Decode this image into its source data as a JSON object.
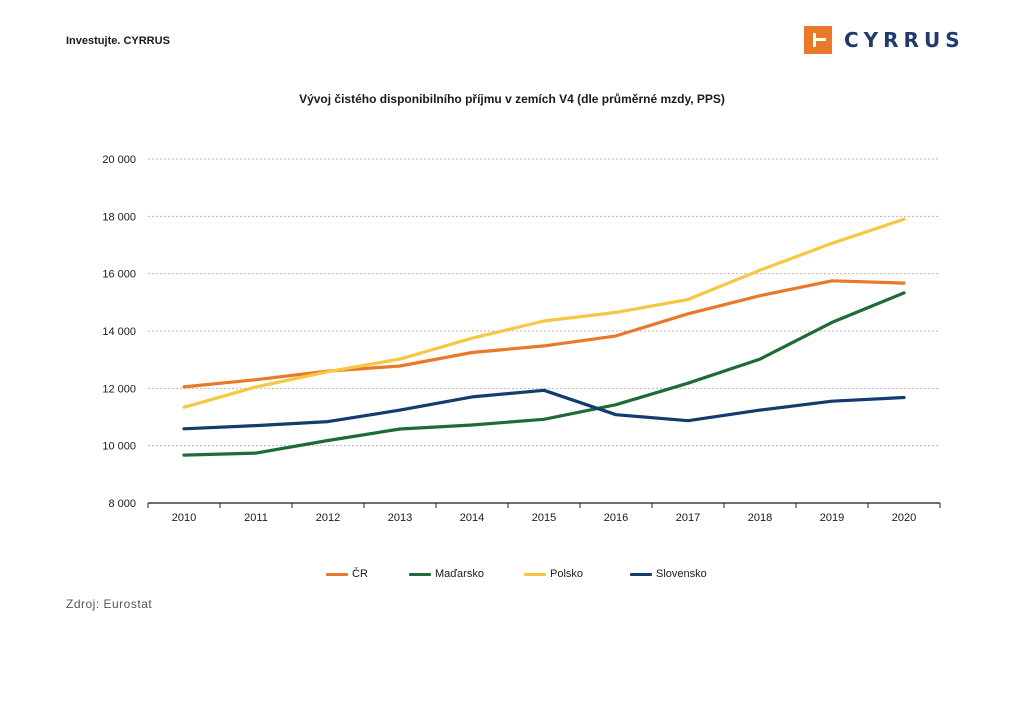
{
  "header": {
    "left_text": "Investujte. CYRRUS",
    "logo_text": "CYRRUS",
    "logo_color": "#e8782a",
    "logo_text_color": "#1f3a6b"
  },
  "source": "Zdroj: Eurostat",
  "chart_data": {
    "type": "line",
    "title": "Vývoj čistého disponibilního příjmu v zemích V4 (dle průměrné mzdy, PPS)",
    "xlabel": "",
    "ylabel": "",
    "categories": [
      "2010",
      "2011",
      "2012",
      "2013",
      "2014",
      "2015",
      "2016",
      "2017",
      "2018",
      "2019",
      "2020"
    ],
    "ylim": [
      8000,
      20000
    ],
    "yticks": [
      8000,
      10000,
      12000,
      14000,
      16000,
      18000,
      20000
    ],
    "ytick_labels": [
      "8 000",
      "10 000",
      "12 000",
      "14 000",
      "16 000",
      "18 000",
      "20 000"
    ],
    "grid": true,
    "legend_position": "bottom",
    "series": [
      {
        "name": "ČR",
        "color": "#e8782a",
        "values": [
          12050,
          12300,
          12600,
          12780,
          13250,
          13480,
          13830,
          14600,
          15230,
          15750,
          15670
        ]
      },
      {
        "name": "Maďarsko",
        "color": "#1e6b35",
        "values": [
          9670,
          9740,
          10180,
          10580,
          10720,
          10920,
          11430,
          12180,
          13020,
          14300,
          15330
        ]
      },
      {
        "name": "Polsko",
        "color": "#f5c842",
        "values": [
          11340,
          12050,
          12580,
          13020,
          13750,
          14350,
          14650,
          15100,
          16120,
          17060,
          17900
        ]
      },
      {
        "name": "Slovensko",
        "color": "#123d6e",
        "values": [
          10590,
          10700,
          10840,
          11240,
          11700,
          11930,
          11080,
          10870,
          11240,
          11550,
          11680
        ]
      }
    ]
  }
}
